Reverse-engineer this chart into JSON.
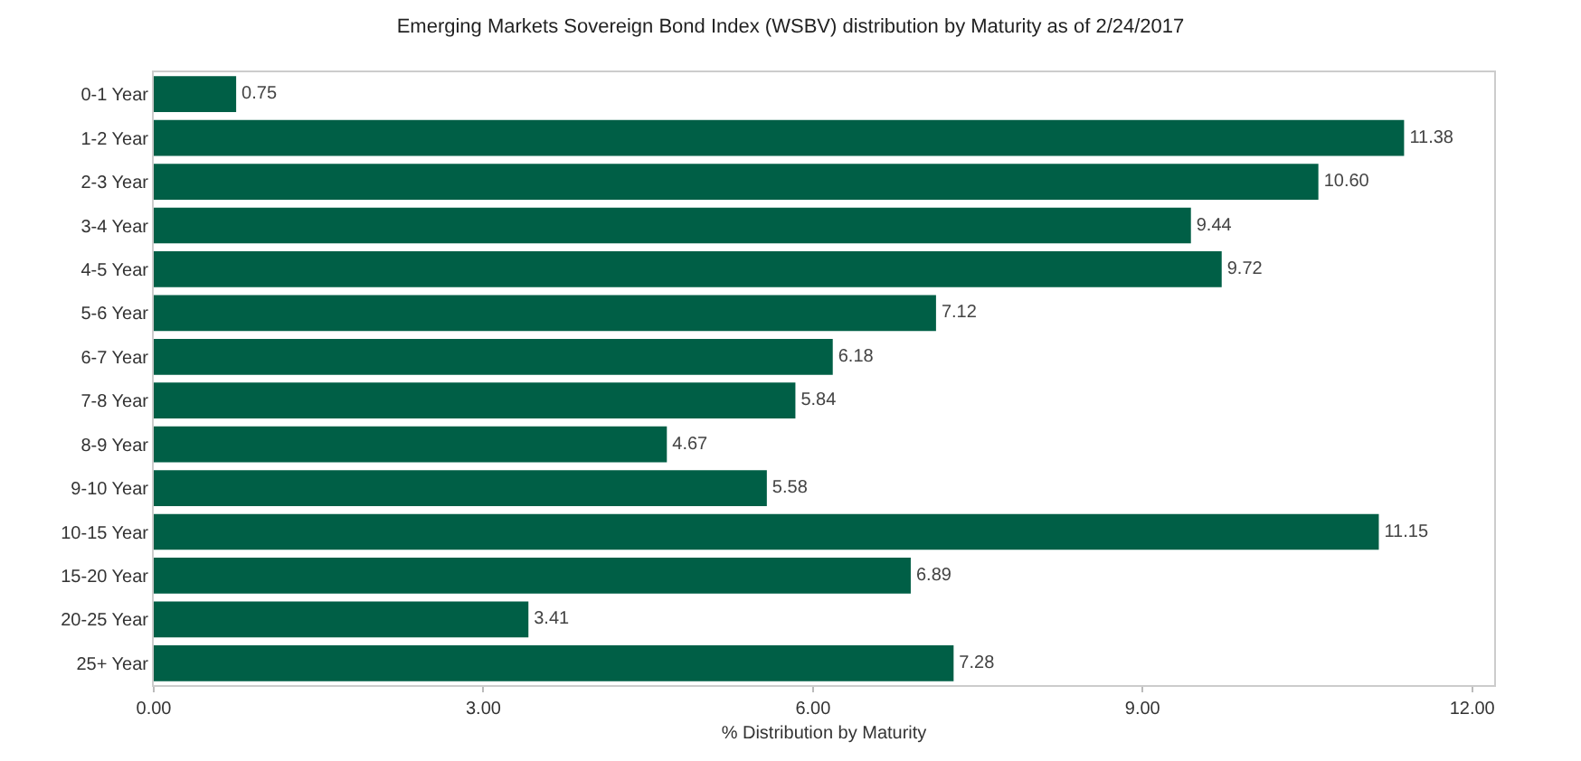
{
  "chart_data": {
    "type": "bar",
    "orientation": "horizontal",
    "title": "Emerging Markets Sovereign Bond Index (WSBV) distribution by Maturity as of 2/24/2017",
    "xlabel": "% Distribution by Maturity",
    "categories": [
      "0-1 Year",
      "1-2 Year",
      "2-3 Year",
      "3-4 Year",
      "4-5 Year",
      "5-6 Year",
      "6-7 Year",
      "7-8 Year",
      "8-9 Year",
      "9-10 Year",
      "10-15 Year",
      "15-20 Year",
      "20-25 Year",
      "25+ Year"
    ],
    "values": [
      0.75,
      11.38,
      10.6,
      9.44,
      9.72,
      7.12,
      6.18,
      5.84,
      4.67,
      5.58,
      11.15,
      6.89,
      3.41,
      7.28
    ],
    "value_labels": [
      "0.75",
      "11.38",
      "10.60",
      "9.44",
      "9.72",
      "7.12",
      "6.18",
      "5.84",
      "4.67",
      "5.58",
      "11.15",
      "6.89",
      "3.41",
      "7.28"
    ],
    "color": "#005f46",
    "xlim": [
      0,
      12.2
    ],
    "xticks": [
      {
        "value": 0,
        "label": "0.00"
      },
      {
        "value": 3,
        "label": "3.00"
      },
      {
        "value": 6,
        "label": "6.00"
      },
      {
        "value": 9,
        "label": "9.00"
      },
      {
        "value": 12,
        "label": "12.00"
      }
    ]
  }
}
